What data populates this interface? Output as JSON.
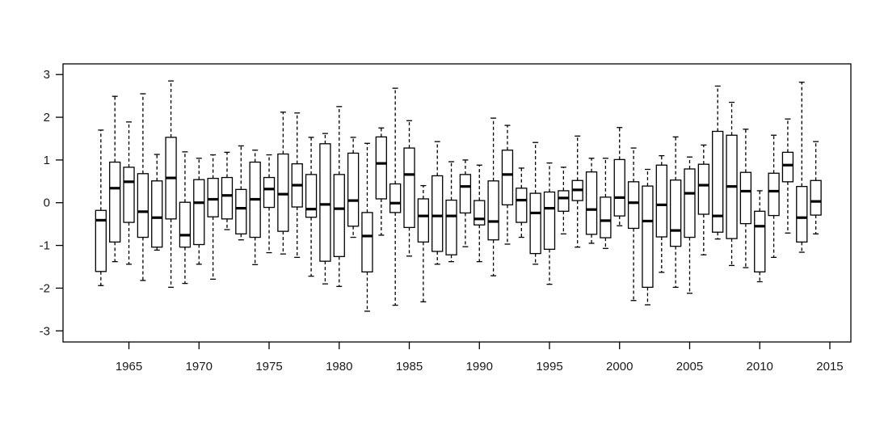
{
  "chart_data": {
    "type": "boxplot",
    "title": "",
    "xlabel": "",
    "ylabel": "",
    "x_ticks": [
      1965,
      1970,
      1975,
      1980,
      1985,
      1990,
      1995,
      2000,
      2005,
      2010,
      2015
    ],
    "y_ticks": [
      -3,
      -2,
      -1,
      0,
      1,
      2,
      3
    ],
    "xlim": [
      1960.3,
      2016.5
    ],
    "ylim": [
      -3.26,
      3.25
    ],
    "grid": false,
    "frame": true,
    "legend": "none",
    "whisker_style": "dashed",
    "colors": {
      "line": "#000000",
      "background": "#ffffff",
      "box_fill": "#ffffff",
      "label": "#1a1a1a"
    },
    "boxes": [
      {
        "year": 1963,
        "low": -1.94,
        "q1": -1.61,
        "median": -0.41,
        "q3": -0.18,
        "high": 1.7
      },
      {
        "year": 1964,
        "low": -1.38,
        "q1": -0.92,
        "median": 0.34,
        "q3": 0.95,
        "high": 2.49
      },
      {
        "year": 1965,
        "low": -1.44,
        "q1": -0.46,
        "median": 0.49,
        "q3": 0.83,
        "high": 1.89
      },
      {
        "year": 1966,
        "low": -1.82,
        "q1": -0.81,
        "median": -0.21,
        "q3": 0.68,
        "high": 2.55
      },
      {
        "year": 1967,
        "low": -1.11,
        "q1": -1.04,
        "median": -0.35,
        "q3": 0.51,
        "high": 1.13
      },
      {
        "year": 1968,
        "low": -1.98,
        "q1": -0.38,
        "median": 0.58,
        "q3": 1.53,
        "high": 2.85
      },
      {
        "year": 1969,
        "low": -1.89,
        "q1": -1.04,
        "median": -0.76,
        "q3": 0.01,
        "high": 1.19
      },
      {
        "year": 1970,
        "low": -1.44,
        "q1": -0.98,
        "median": 0.0,
        "q3": 0.54,
        "high": 1.04
      },
      {
        "year": 1971,
        "low": -1.79,
        "q1": -0.33,
        "median": 0.08,
        "q3": 0.57,
        "high": 1.12
      },
      {
        "year": 1972,
        "low": -0.63,
        "q1": -0.38,
        "median": 0.17,
        "q3": 0.59,
        "high": 1.18
      },
      {
        "year": 1973,
        "low": -0.87,
        "q1": -0.73,
        "median": -0.13,
        "q3": 0.31,
        "high": 1.33
      },
      {
        "year": 1974,
        "low": -1.45,
        "q1": -0.81,
        "median": 0.08,
        "q3": 0.95,
        "high": 1.23
      },
      {
        "year": 1975,
        "low": -1.17,
        "q1": -0.11,
        "median": 0.32,
        "q3": 0.59,
        "high": 1.12
      },
      {
        "year": 1976,
        "low": -1.2,
        "q1": -0.67,
        "median": 0.2,
        "q3": 1.14,
        "high": 2.12
      },
      {
        "year": 1977,
        "low": -1.28,
        "q1": -0.1,
        "median": 0.41,
        "q3": 0.91,
        "high": 2.1
      },
      {
        "year": 1978,
        "low": -1.72,
        "q1": -0.34,
        "median": -0.15,
        "q3": 0.66,
        "high": 1.53
      },
      {
        "year": 1979,
        "low": -1.9,
        "q1": -1.37,
        "median": -0.04,
        "q3": 1.38,
        "high": 1.62
      },
      {
        "year": 1980,
        "low": -1.96,
        "q1": -1.26,
        "median": -0.14,
        "q3": 0.66,
        "high": 2.25
      },
      {
        "year": 1981,
        "low": -0.81,
        "q1": -0.55,
        "median": 0.05,
        "q3": 1.16,
        "high": 1.53
      },
      {
        "year": 1982,
        "low": -2.54,
        "q1": -1.62,
        "median": -0.78,
        "q3": -0.23,
        "high": 1.39
      },
      {
        "year": 1983,
        "low": -0.76,
        "q1": 0.09,
        "median": 0.92,
        "q3": 1.54,
        "high": 1.75
      },
      {
        "year": 1984,
        "low": -2.4,
        "q1": -0.23,
        "median": -0.01,
        "q3": 0.44,
        "high": 2.68
      },
      {
        "year": 1985,
        "low": -1.25,
        "q1": -0.58,
        "median": 0.66,
        "q3": 1.28,
        "high": 1.92
      },
      {
        "year": 1986,
        "low": -2.32,
        "q1": -0.92,
        "median": -0.31,
        "q3": 0.09,
        "high": 0.4
      },
      {
        "year": 1987,
        "low": -1.44,
        "q1": -1.14,
        "median": -0.31,
        "q3": 0.63,
        "high": 1.43
      },
      {
        "year": 1988,
        "low": -1.38,
        "q1": -1.22,
        "median": -0.31,
        "q3": 0.06,
        "high": 0.96
      },
      {
        "year": 1989,
        "low": -1.03,
        "q1": -0.24,
        "median": 0.38,
        "q3": 0.66,
        "high": 1.0
      },
      {
        "year": 1990,
        "low": -1.38,
        "q1": -0.52,
        "median": -0.38,
        "q3": 0.05,
        "high": 0.88
      },
      {
        "year": 1991,
        "low": -1.71,
        "q1": -0.87,
        "median": -0.44,
        "q3": 0.51,
        "high": 1.98
      },
      {
        "year": 1992,
        "low": -0.97,
        "q1": -0.05,
        "median": 0.66,
        "q3": 1.23,
        "high": 1.81
      },
      {
        "year": 1993,
        "low": -0.81,
        "q1": -0.46,
        "median": 0.06,
        "q3": 0.34,
        "high": 0.81
      },
      {
        "year": 1994,
        "low": -1.44,
        "q1": -1.19,
        "median": -0.24,
        "q3": 0.22,
        "high": 1.41
      },
      {
        "year": 1995,
        "low": -1.91,
        "q1": -1.09,
        "median": -0.13,
        "q3": 0.25,
        "high": 0.93
      },
      {
        "year": 1996,
        "low": -0.73,
        "q1": -0.2,
        "median": 0.11,
        "q3": 0.28,
        "high": 0.83
      },
      {
        "year": 1997,
        "low": -1.04,
        "q1": 0.05,
        "median": 0.3,
        "q3": 0.52,
        "high": 1.56
      },
      {
        "year": 1998,
        "low": -0.95,
        "q1": -0.74,
        "median": -0.16,
        "q3": 0.72,
        "high": 1.04
      },
      {
        "year": 1999,
        "low": -1.07,
        "q1": -0.82,
        "median": -0.42,
        "q3": 0.13,
        "high": 1.04
      },
      {
        "year": 2000,
        "low": -0.54,
        "q1": -0.31,
        "median": 0.12,
        "q3": 1.01,
        "high": 1.76
      },
      {
        "year": 2001,
        "low": -2.29,
        "q1": -0.6,
        "median": 0.0,
        "q3": 0.49,
        "high": 1.28
      },
      {
        "year": 2002,
        "low": -2.39,
        "q1": -1.98,
        "median": -0.43,
        "q3": 0.39,
        "high": 0.78
      },
      {
        "year": 2003,
        "low": -1.63,
        "q1": -0.8,
        "median": -0.05,
        "q3": 0.88,
        "high": 1.1
      },
      {
        "year": 2004,
        "low": -1.98,
        "q1": -1.02,
        "median": -0.65,
        "q3": 0.53,
        "high": 1.54
      },
      {
        "year": 2005,
        "low": -2.12,
        "q1": -0.81,
        "median": 0.22,
        "q3": 0.79,
        "high": 1.07
      },
      {
        "year": 2006,
        "low": -1.22,
        "q1": -0.27,
        "median": 0.41,
        "q3": 0.9,
        "high": 1.35
      },
      {
        "year": 2007,
        "low": -0.85,
        "q1": -0.69,
        "median": -0.31,
        "q3": 1.67,
        "high": 2.73
      },
      {
        "year": 2008,
        "low": -1.47,
        "q1": -0.84,
        "median": 0.38,
        "q3": 1.58,
        "high": 2.35
      },
      {
        "year": 2009,
        "low": -1.52,
        "q1": -0.49,
        "median": 0.27,
        "q3": 0.71,
        "high": 1.72
      },
      {
        "year": 2010,
        "low": -1.85,
        "q1": -1.62,
        "median": -0.55,
        "q3": -0.2,
        "high": 0.28
      },
      {
        "year": 2011,
        "low": -1.28,
        "q1": -0.3,
        "median": 0.27,
        "q3": 0.69,
        "high": 1.58
      },
      {
        "year": 2012,
        "low": -0.71,
        "q1": 0.49,
        "median": 0.88,
        "q3": 1.18,
        "high": 1.96
      },
      {
        "year": 2013,
        "low": -1.16,
        "q1": -0.92,
        "median": -0.35,
        "q3": 0.38,
        "high": 2.82
      },
      {
        "year": 2014,
        "low": -0.73,
        "q1": -0.29,
        "median": 0.03,
        "q3": 0.52,
        "high": 1.43
      }
    ]
  }
}
